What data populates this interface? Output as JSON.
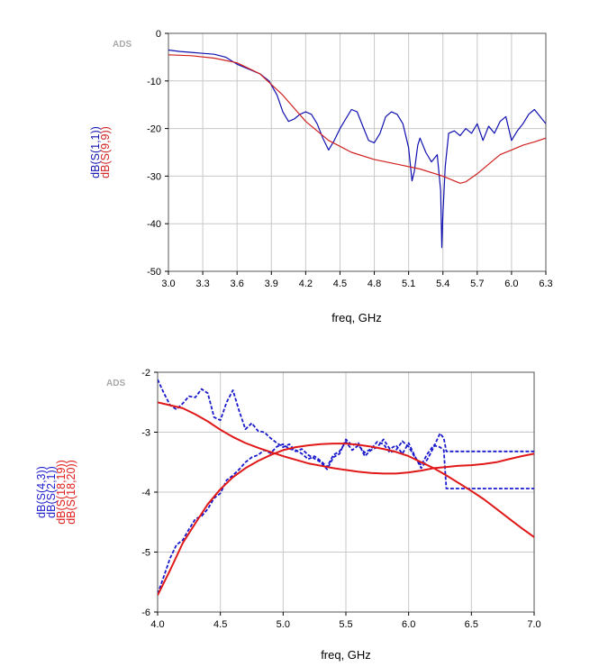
{
  "chart_data": [
    {
      "type": "line",
      "watermark": "ADS",
      "xlabel": "freq, GHz",
      "xlim": [
        3.0,
        6.3
      ],
      "ylim": [
        -50,
        0
      ],
      "xticks": [
        "3.0",
        "3.3",
        "3.6",
        "3.9",
        "4.2",
        "4.5",
        "4.8",
        "5.1",
        "5.4",
        "5.7",
        "6.0",
        "6.3"
      ],
      "yticks": [
        "0",
        "-10",
        "-20",
        "-30",
        "-40",
        "-50"
      ],
      "grid": true,
      "series": [
        {
          "name": "dB(S(1,1))",
          "color": "#1010b0",
          "style": "solid",
          "x": [
            3.0,
            3.1,
            3.2,
            3.3,
            3.4,
            3.5,
            3.6,
            3.7,
            3.8,
            3.88,
            3.95,
            4.0,
            4.05,
            4.1,
            4.15,
            4.2,
            4.25,
            4.3,
            4.35,
            4.4,
            4.45,
            4.5,
            4.55,
            4.6,
            4.65,
            4.7,
            4.75,
            4.8,
            4.85,
            4.9,
            4.95,
            5.0,
            5.05,
            5.1,
            5.13,
            5.15,
            5.18,
            5.2,
            5.25,
            5.3,
            5.35,
            5.38,
            5.39,
            5.4,
            5.42,
            5.45,
            5.5,
            5.55,
            5.6,
            5.65,
            5.7,
            5.75,
            5.8,
            5.85,
            5.9,
            5.95,
            6.0,
            6.05,
            6.1,
            6.15,
            6.2,
            6.25,
            6.3
          ],
          "y": [
            -3.5,
            -3.8,
            -4.0,
            -4.2,
            -4.4,
            -5.0,
            -6.5,
            -7.5,
            -8.5,
            -10.0,
            -13.0,
            -16.5,
            -18.5,
            -18.0,
            -17.0,
            -16.5,
            -17.0,
            -19.0,
            -22.0,
            -24.5,
            -22.5,
            -20.0,
            -18.0,
            -16.0,
            -16.5,
            -19.5,
            -22.5,
            -23.0,
            -21.0,
            -17.5,
            -16.5,
            -17.0,
            -19.0,
            -24.0,
            -31.0,
            -29.0,
            -23.5,
            -22.0,
            -25.0,
            -27.0,
            -25.5,
            -33.0,
            -45.0,
            -38.0,
            -28.0,
            -21.0,
            -20.5,
            -21.5,
            -20.0,
            -21.0,
            -19.0,
            -22.5,
            -19.5,
            -21.0,
            -18.5,
            -17.5,
            -22.5,
            -20.5,
            -19.0,
            -17.0,
            -16.0,
            -17.5,
            -19.0
          ]
        },
        {
          "name": "dB(S(9,9))",
          "color": "#d02020",
          "style": "solid",
          "x": [
            3.0,
            3.2,
            3.4,
            3.6,
            3.8,
            4.0,
            4.2,
            4.4,
            4.6,
            4.8,
            5.0,
            5.2,
            5.4,
            5.5,
            5.55,
            5.6,
            5.7,
            5.8,
            5.9,
            6.0,
            6.1,
            6.2,
            6.3
          ],
          "y": [
            -4.5,
            -4.7,
            -5.2,
            -6.2,
            -8.5,
            -13.0,
            -18.5,
            -22.5,
            -25.0,
            -26.5,
            -27.5,
            -28.5,
            -30.0,
            -31.0,
            -31.5,
            -31.2,
            -29.5,
            -27.5,
            -25.5,
            -24.5,
            -23.5,
            -22.8,
            -22.0
          ]
        }
      ]
    },
    {
      "type": "line",
      "watermark": "ADS",
      "xlabel": "freq, GHz",
      "xlim": [
        4.0,
        7.0
      ],
      "ylim": [
        -6,
        -2
      ],
      "xticks": [
        "4.0",
        "4.5",
        "5.0",
        "5.5",
        "6.0",
        "6.5",
        "7.0"
      ],
      "yticks": [
        "-2",
        "-3",
        "-4",
        "-5",
        "-6"
      ],
      "grid": true,
      "series": [
        {
          "name": "dB(S(4,3))",
          "color": "#1a1acc",
          "style": "dashed",
          "x": [
            4.0,
            4.05,
            4.1,
            4.15,
            4.2,
            4.25,
            4.3,
            4.35,
            4.4,
            4.45,
            4.5,
            4.55,
            4.6,
            4.65,
            4.7,
            4.75,
            4.8,
            4.85,
            4.9,
            4.95,
            5.0,
            5.05,
            5.1,
            5.15,
            5.2,
            5.25,
            5.3,
            5.35,
            5.4,
            5.45,
            5.5,
            5.55,
            5.6,
            5.65,
            5.7,
            5.75,
            5.8,
            5.85,
            5.9,
            5.95,
            6.0,
            6.05,
            6.1,
            6.15,
            6.2,
            6.25,
            6.28,
            6.3,
            6.4,
            6.5,
            6.6,
            6.7,
            6.8,
            6.9,
            7.0
          ],
          "y": [
            -5.7,
            -5.4,
            -5.1,
            -4.88,
            -4.8,
            -4.62,
            -4.45,
            -4.4,
            -4.28,
            -4.1,
            -4.02,
            -3.8,
            -3.72,
            -3.62,
            -3.5,
            -3.42,
            -3.38,
            -3.3,
            -3.35,
            -3.24,
            -3.2,
            -3.28,
            -3.3,
            -3.36,
            -3.45,
            -3.4,
            -3.48,
            -3.58,
            -3.38,
            -3.32,
            -3.16,
            -3.3,
            -3.22,
            -3.34,
            -3.28,
            -3.16,
            -3.2,
            -3.34,
            -3.3,
            -3.15,
            -3.24,
            -3.42,
            -3.55,
            -3.36,
            -3.22,
            -3.25,
            -3.3,
            -3.94,
            -3.94,
            -3.94,
            -3.94,
            -3.94,
            -3.94,
            -3.94,
            -3.94
          ]
        },
        {
          "name": "dB(S(2,1))",
          "color": "#1a1acc",
          "style": "dashed",
          "x": [
            4.0,
            4.05,
            4.1,
            4.15,
            4.2,
            4.25,
            4.3,
            4.35,
            4.4,
            4.45,
            4.5,
            4.55,
            4.6,
            4.65,
            4.7,
            4.75,
            4.8,
            4.85,
            4.9,
            4.95,
            5.0,
            5.05,
            5.1,
            5.15,
            5.2,
            5.25,
            5.3,
            5.35,
            5.4,
            5.45,
            5.5,
            5.55,
            5.6,
            5.65,
            5.7,
            5.75,
            5.8,
            5.85,
            5.9,
            5.95,
            6.0,
            6.05,
            6.1,
            6.15,
            6.2,
            6.25,
            6.28,
            6.3,
            6.4,
            6.5,
            6.6,
            6.7,
            6.8,
            6.9,
            7.0
          ],
          "y": [
            -2.12,
            -2.35,
            -2.55,
            -2.62,
            -2.52,
            -2.4,
            -2.42,
            -2.28,
            -2.35,
            -2.75,
            -2.8,
            -2.5,
            -2.3,
            -2.65,
            -2.95,
            -2.85,
            -2.98,
            -3.0,
            -3.1,
            -3.18,
            -3.25,
            -3.2,
            -3.32,
            -3.28,
            -3.38,
            -3.44,
            -3.5,
            -3.62,
            -3.42,
            -3.36,
            -3.12,
            -3.22,
            -3.18,
            -3.4,
            -3.3,
            -3.25,
            -3.12,
            -3.28,
            -3.22,
            -3.36,
            -3.18,
            -3.4,
            -3.6,
            -3.45,
            -3.25,
            -3.02,
            -3.1,
            -3.32,
            -3.32,
            -3.32,
            -3.32,
            -3.32,
            -3.32,
            -3.32,
            -3.32
          ]
        },
        {
          "name": "dB(S(18,19))",
          "color": "#e01818",
          "style": "solid",
          "x": [
            4.0,
            4.1,
            4.2,
            4.3,
            4.4,
            4.5,
            4.6,
            4.7,
            4.8,
            4.9,
            5.0,
            5.1,
            5.2,
            5.3,
            5.4,
            5.5,
            5.6,
            5.7,
            5.8,
            5.9,
            6.0,
            6.1,
            6.2,
            6.3,
            6.4,
            6.5,
            6.6,
            6.7,
            6.8,
            6.9,
            7.0
          ],
          "y": [
            -5.72,
            -5.3,
            -4.85,
            -4.52,
            -4.2,
            -3.95,
            -3.75,
            -3.6,
            -3.48,
            -3.38,
            -3.3,
            -3.25,
            -3.22,
            -3.2,
            -3.19,
            -3.19,
            -3.21,
            -3.24,
            -3.28,
            -3.33,
            -3.4,
            -3.5,
            -3.6,
            -3.72,
            -3.85,
            -3.98,
            -4.12,
            -4.28,
            -4.44,
            -4.6,
            -4.75
          ]
        },
        {
          "name": "dB(S(18,20))",
          "color": "#e01818",
          "style": "solid",
          "x": [
            4.0,
            4.1,
            4.2,
            4.3,
            4.4,
            4.5,
            4.6,
            4.7,
            4.8,
            4.9,
            5.0,
            5.1,
            5.2,
            5.3,
            5.4,
            5.5,
            5.6,
            5.7,
            5.8,
            5.9,
            6.0,
            6.1,
            6.2,
            6.3,
            6.4,
            6.5,
            6.6,
            6.7,
            6.8,
            6.9,
            7.0
          ],
          "y": [
            -2.5,
            -2.55,
            -2.6,
            -2.7,
            -2.82,
            -2.96,
            -3.08,
            -3.18,
            -3.26,
            -3.33,
            -3.4,
            -3.46,
            -3.52,
            -3.56,
            -3.6,
            -3.63,
            -3.66,
            -3.68,
            -3.69,
            -3.69,
            -3.67,
            -3.64,
            -3.6,
            -3.58,
            -3.56,
            -3.55,
            -3.53,
            -3.5,
            -3.45,
            -3.4,
            -3.36
          ]
        }
      ]
    }
  ]
}
